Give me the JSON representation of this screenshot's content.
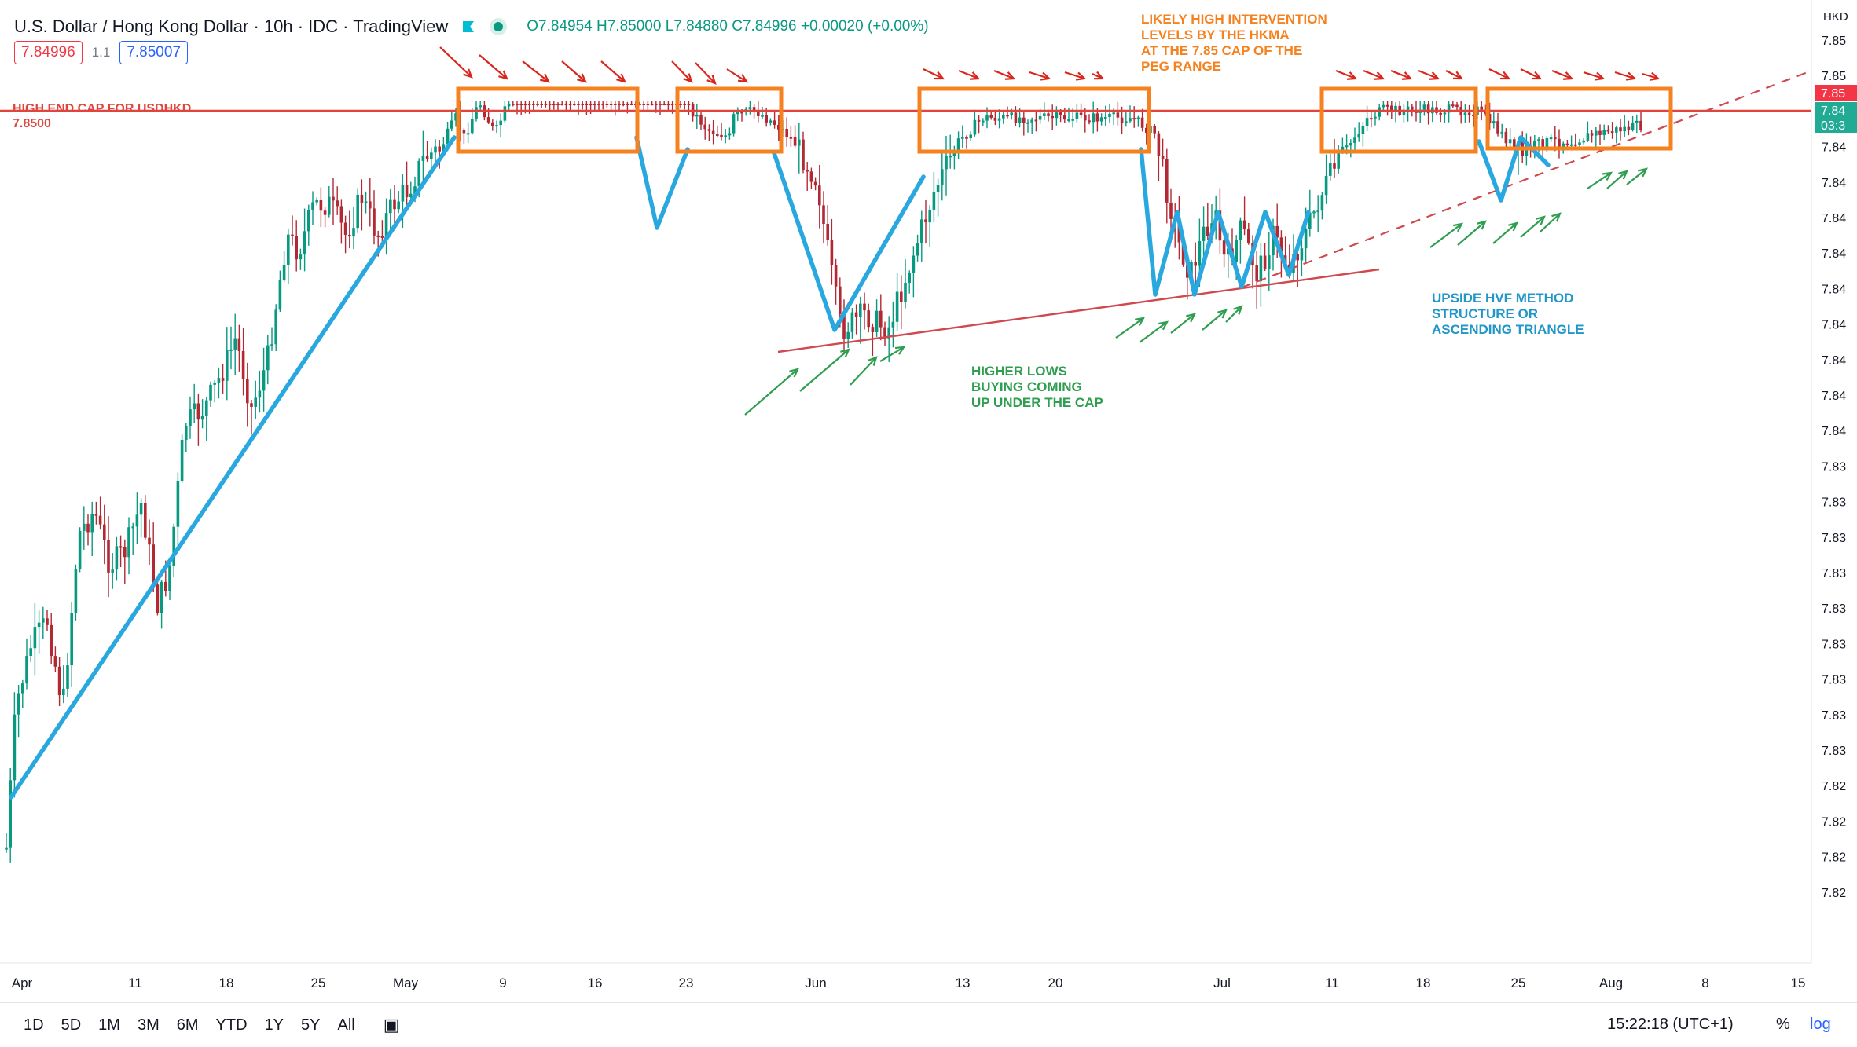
{
  "header": {
    "title": "U.S. Dollar / Hong Kong Dollar · 10h · IDC · TradingView",
    "ohlc": "O7.84954 H7.85000 L7.84880 C7.84996 +0.00020 (+0.00%)",
    "sell_price": "7.84996",
    "spread": "1.1",
    "buy_price": "7.85007"
  },
  "chart_data": {
    "type": "candlestick",
    "symbol": "USDHKD",
    "currency": "HKD",
    "price_axis_labels": [
      "7.85",
      "7.85",
      "7.84",
      "7.84",
      "7.84",
      "7.84",
      "7.84",
      "7.84",
      "7.84",
      "7.84",
      "7.84",
      "7.84",
      "7.83",
      "7.83",
      "7.83",
      "7.83",
      "7.83",
      "7.83",
      "7.83",
      "7.83",
      "7.83",
      "7.82",
      "7.82",
      "7.82",
      "7.82"
    ],
    "price_tags": [
      "7.85",
      "7.84",
      "03:3"
    ],
    "x_tick_labels": [
      "Apr",
      "11",
      "18",
      "25",
      "May",
      "9",
      "16",
      "23",
      "Jun",
      "13",
      "20",
      "Jul",
      "11",
      "18",
      "25",
      "Aug",
      "8",
      "15"
    ],
    "cap_line": {
      "label": "HIGH END CAP FOR USDHKD",
      "value": "7.8500"
    },
    "annotations": {
      "intervention": "LIKELY HIGH INTERVENTION LEVELS BY THE HKMA AT THE 7.85 CAP OF THE PEG RANGE",
      "higher_lows": "HIGHER LOWS BUYING COMING UP UNDER THE CAP",
      "hvf": "UPSIDE HVF METHOD STRUCTURE OR ASCENDING TRIANGLE"
    },
    "colors": {
      "up": "#089981",
      "down": "#b22833",
      "cap": "#e0443c",
      "trend": "#29a8e0",
      "box": "#f5821f",
      "arrows_green": "#2e9e4f",
      "arrows_red": "#d9261c",
      "text_blue": "#2196c9"
    }
  },
  "bottom": {
    "timeframes": [
      "1D",
      "5D",
      "1M",
      "3M",
      "6M",
      "YTD",
      "1Y",
      "5Y",
      "All"
    ],
    "clock": "15:22:18 (UTC+1)",
    "percent": "%",
    "log": "log"
  }
}
